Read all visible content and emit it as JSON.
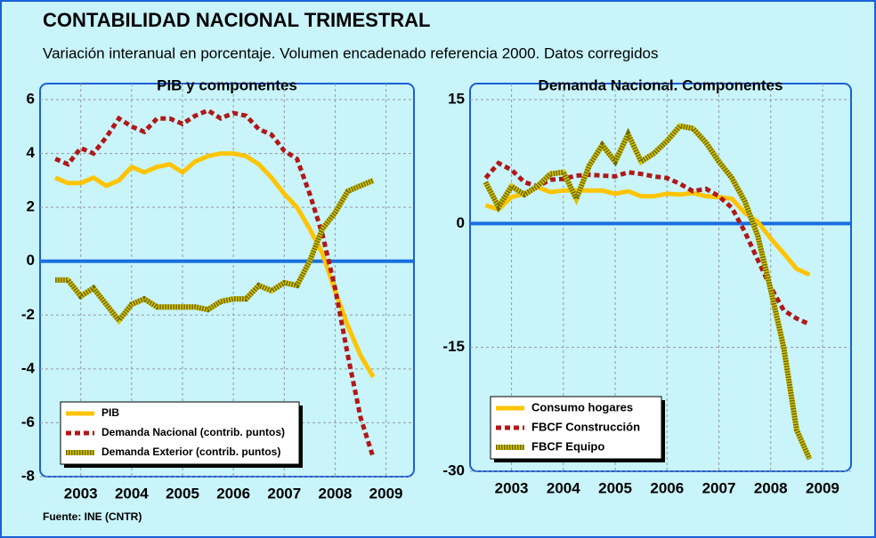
{
  "title": "CONTABILIDAD NACIONAL TRIMESTRAL",
  "subtitle": "Variación interanual en porcentaje. Volumen encadenado referencia 2000. Datos corregidos",
  "source": "Fuente: INE (CNTR)",
  "chart_data": [
    {
      "type": "line",
      "title": "PIB y componentes",
      "legend": "lower left",
      "x": [
        2003,
        2003.25,
        2003.5,
        2003.75,
        2004,
        2004.25,
        2004.5,
        2004.75,
        2005,
        2005.25,
        2005.5,
        2005.75,
        2006,
        2006.25,
        2006.5,
        2006.75,
        2007,
        2007.25,
        2007.5,
        2007.75,
        2008,
        2008.25,
        2008.5,
        2008.75,
        2009,
        2009.25
      ],
      "xlim": [
        2002.7,
        2010.05
      ],
      "xticks": [
        {
          "value": 2003.5,
          "label": "2003"
        },
        {
          "value": 2004.5,
          "label": "2004"
        },
        {
          "value": 2005.5,
          "label": "2005"
        },
        {
          "value": 2006.5,
          "label": "2006"
        },
        {
          "value": 2007.5,
          "label": "2007"
        },
        {
          "value": 2008.5,
          "label": "2008"
        },
        {
          "value": 2009.5,
          "label": "2009"
        }
      ],
      "ylim": [
        -8,
        6
      ],
      "yticks": [
        -8,
        -6,
        -4,
        -2,
        0,
        2,
        4,
        6
      ],
      "series": [
        {
          "name": "PIB",
          "color": "#ffc400",
          "style": "solid",
          "values": [
            3.1,
            2.9,
            2.9,
            3.1,
            2.8,
            3.0,
            3.5,
            3.3,
            3.5,
            3.6,
            3.3,
            3.7,
            3.9,
            4.0,
            4.0,
            3.9,
            3.6,
            3.1,
            2.5,
            2.0,
            1.2,
            0.3,
            -1.1,
            -2.4,
            -3.5,
            -4.3
          ]
        },
        {
          "name": "Demanda Nacional (contrib. puntos)",
          "color": "#b01818",
          "style": "dashed",
          "values": [
            3.8,
            3.6,
            4.2,
            4.0,
            4.6,
            5.3,
            5.0,
            4.8,
            5.3,
            5.3,
            5.1,
            5.4,
            5.6,
            5.3,
            5.5,
            5.4,
            4.9,
            4.7,
            4.1,
            3.8,
            2.5,
            1.0,
            -1.0,
            -3.5,
            -5.8,
            -7.3
          ]
        },
        {
          "name": "Demanda Exterior (contrib. puntos)",
          "color": "#d8c400",
          "style": "hatched",
          "values": [
            -0.7,
            -0.7,
            -1.3,
            -1.0,
            -1.6,
            -2.2,
            -1.6,
            -1.4,
            -1.7,
            -1.7,
            -1.7,
            -1.7,
            -1.8,
            -1.5,
            -1.4,
            -1.4,
            -0.9,
            -1.1,
            -0.8,
            -0.9,
            0.0,
            1.2,
            1.8,
            2.6,
            2.8,
            3.0
          ]
        }
      ]
    },
    {
      "type": "line",
      "title": "Demanda Nacional. Componentes",
      "legend": "lower left",
      "x": [
        2003,
        2003.25,
        2003.5,
        2003.75,
        2004,
        2004.25,
        2004.5,
        2004.75,
        2005,
        2005.25,
        2005.5,
        2005.75,
        2006,
        2006.25,
        2006.5,
        2006.75,
        2007,
        2007.25,
        2007.5,
        2007.75,
        2008,
        2008.25,
        2008.5,
        2008.75,
        2009,
        2009.25
      ],
      "xlim": [
        2002.7,
        2010.05
      ],
      "xticks": [
        {
          "value": 2003.5,
          "label": "2003"
        },
        {
          "value": 2004.5,
          "label": "2004"
        },
        {
          "value": 2005.5,
          "label": "2005"
        },
        {
          "value": 2006.5,
          "label": "2006"
        },
        {
          "value": 2007.5,
          "label": "2007"
        },
        {
          "value": 2008.5,
          "label": "2008"
        },
        {
          "value": 2009.5,
          "label": "2009"
        }
      ],
      "ylim": [
        -30,
        15
      ],
      "yticks": [
        -30,
        -15,
        0,
        15
      ],
      "series": [
        {
          "name": "Consumo hogares",
          "color": "#ffc400",
          "style": "solid",
          "values": [
            2.2,
            1.7,
            3.2,
            3.6,
            4.4,
            3.8,
            4.0,
            4.0,
            4.0,
            4.0,
            3.6,
            3.9,
            3.3,
            3.3,
            3.6,
            3.5,
            3.7,
            3.3,
            3.2,
            3.0,
            1.3,
            0.2,
            -1.8,
            -3.6,
            -5.5,
            -6.2
          ]
        },
        {
          "name": "FBCF Construcción",
          "color": "#b01818",
          "style": "dashed",
          "values": [
            5.5,
            7.3,
            6.5,
            5.0,
            4.5,
            5.3,
            5.4,
            5.8,
            5.9,
            5.8,
            5.7,
            6.2,
            6.0,
            5.7,
            5.5,
            4.8,
            3.9,
            4.2,
            3.3,
            1.9,
            -1.0,
            -4.4,
            -7.7,
            -10.5,
            -11.5,
            -12.2
          ]
        },
        {
          "name": "FBCF Equipo",
          "color": "#d8c400",
          "style": "hatched",
          "values": [
            5.0,
            2.0,
            4.5,
            3.5,
            4.5,
            6.0,
            6.2,
            3.0,
            7.0,
            9.5,
            7.5,
            10.8,
            7.5,
            8.5,
            10.0,
            11.8,
            11.5,
            9.8,
            7.5,
            5.5,
            2.7,
            -1.5,
            -8.0,
            -15.0,
            -25.0,
            -28.5
          ]
        }
      ]
    }
  ]
}
